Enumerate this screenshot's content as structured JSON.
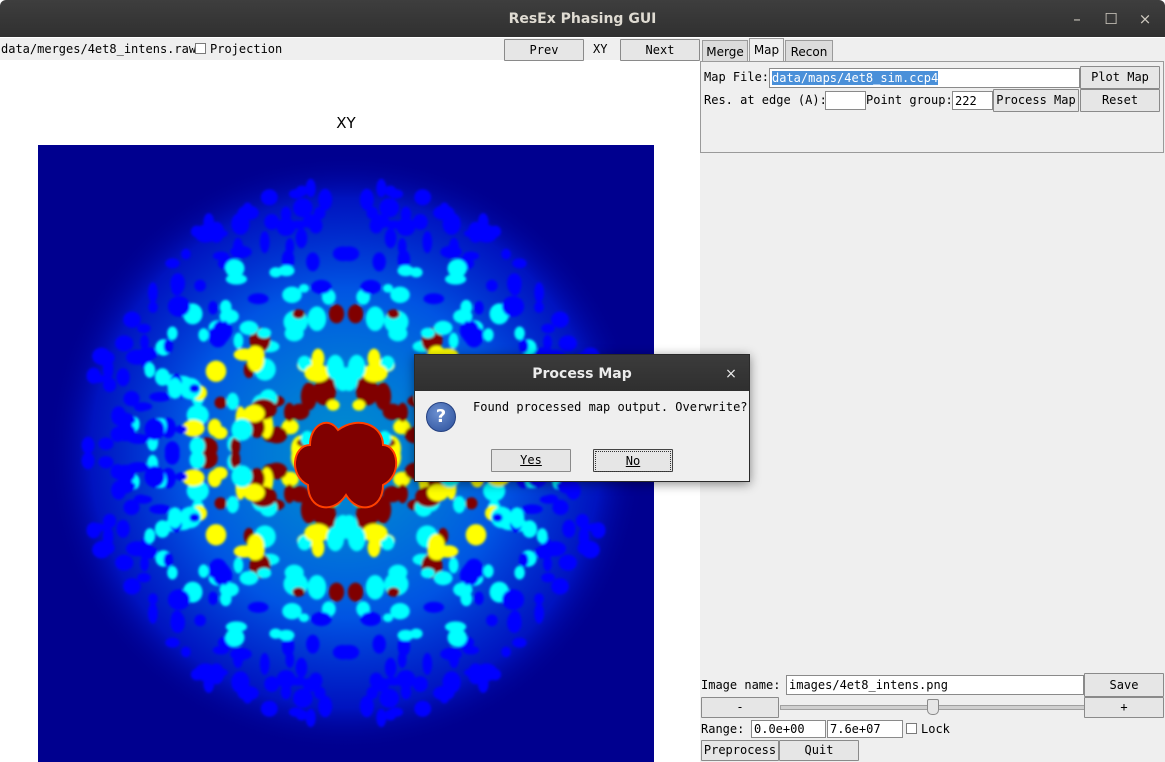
{
  "window": {
    "title": "ResEx Phasing GUI",
    "minimize_glyph": "–",
    "maximize_glyph": "☐",
    "close_glyph": "×"
  },
  "toolbar": {
    "file_path": "data/merges/4et8_intens.raw",
    "projection_label": "Projection",
    "prev_label": "Prev",
    "view_label": "XY",
    "next_label": "Next"
  },
  "tabs": [
    {
      "label": "Merge",
      "active": false
    },
    {
      "label": "Map",
      "active": true
    },
    {
      "label": "Recon",
      "active": false
    }
  ],
  "map_panel": {
    "map_file_label": "Map File:",
    "map_file_value": "data/maps/4et8_sim.ccp4",
    "plot_map_label": "Plot Map",
    "res_label": "Res. at edge (A):",
    "res_value": "",
    "point_group_label": "Point group:",
    "point_group_value": "222",
    "process_map_label": "Process Map",
    "reset_label": "Reset"
  },
  "plot": {
    "title": "XY",
    "colormap": "jet",
    "colors": {
      "background": "#00008f",
      "low": "#0000ff",
      "mid": "#00ffff",
      "high": "#ffff00",
      "peak": "#800000"
    }
  },
  "bottom_panel": {
    "image_name_label": "Image name:",
    "image_name_value": "images/4et8_intens.png",
    "save_label": "Save",
    "minus_label": "-",
    "plus_label": "+",
    "slider_value_fraction": 0.5,
    "range_label": "Range:",
    "range_min": "0.0e+00",
    "range_max": "7.6e+07",
    "lock_label": "Lock",
    "preprocess_label": "Preprocess",
    "quit_label": "Quit"
  },
  "dialog": {
    "title": "Process Map",
    "close_glyph": "×",
    "icon": "question-icon",
    "message": "Found processed map output. Overwrite?",
    "yes_label": "Yes",
    "no_label": "No"
  }
}
